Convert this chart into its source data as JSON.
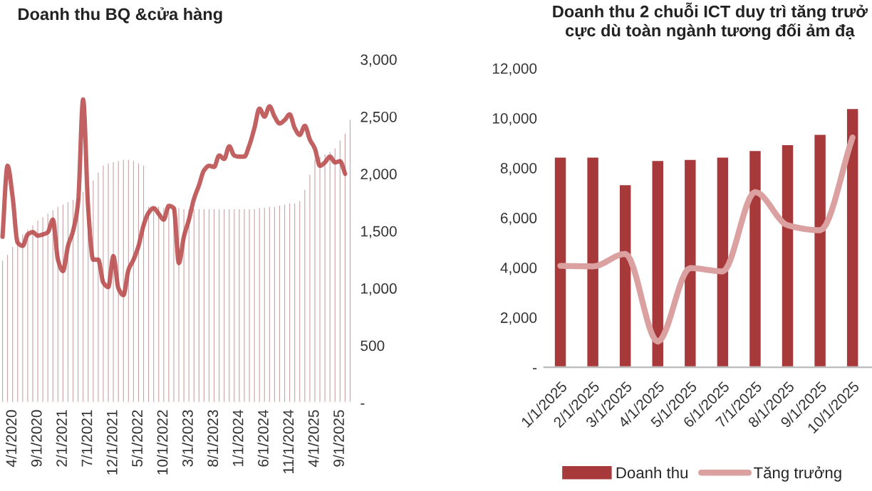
{
  "chart_data": [
    {
      "type": "bar",
      "title": "Doanh thu BQ &cửa hàng",
      "categories": [
        null,
        null,
        "4/1/2020",
        null,
        null,
        null,
        null,
        "9/1/2020",
        null,
        null,
        null,
        null,
        "2/1/2021",
        null,
        null,
        null,
        null,
        "7/1/2021",
        null,
        null,
        null,
        null,
        "12/1/2021",
        null,
        null,
        null,
        null,
        "5/1/2022",
        null,
        null,
        null,
        null,
        "10/1/2022",
        null,
        null,
        null,
        null,
        "3/1/2023",
        null,
        null,
        null,
        null,
        "8/1/2023",
        null,
        null,
        null,
        null,
        "1/1/2024",
        null,
        null,
        null,
        null,
        "6/1/2024",
        null,
        null,
        null,
        null,
        "11/1/2024",
        null,
        null,
        null,
        null,
        "4/1/2025",
        null,
        null,
        null,
        null,
        "9/1/2025",
        null,
        null
      ],
      "series": [
        {
          "axis": "y2",
          "color": "#c9a2a4",
          "values": [
            1250,
            1300,
            1370,
            1420,
            1480,
            1520,
            1560,
            1600,
            1630,
            1660,
            1690,
            1720,
            1740,
            1760,
            1780,
            1800,
            1850,
            1900,
            1950,
            2020,
            2080,
            2100,
            2110,
            2120,
            2130,
            2130,
            2120,
            2100,
            2080,
            1720,
            1720,
            1720,
            1710,
            1710,
            1710,
            1710,
            1700,
            1700,
            1700,
            1700,
            1700,
            1700,
            1700,
            1700,
            1700,
            1700,
            1700,
            1700,
            1700,
            1700,
            1700,
            1710,
            1710,
            1720,
            1720,
            1730,
            1740,
            1750,
            1750,
            1770,
            1870,
            2000,
            2130,
            2160,
            2180,
            2200,
            2230,
            2300,
            2360,
            2480
          ]
        },
        {
          "type": "line",
          "axis": "y2",
          "color": "#b3393b",
          "values": [
            1450,
            2070,
            1800,
            1400,
            1370,
            1470,
            1490,
            1460,
            1470,
            1490,
            1600,
            1250,
            1150,
            1370,
            1500,
            1750,
            2650,
            1700,
            1250,
            1250,
            1050,
            1010,
            1280,
            1000,
            940,
            1160,
            1250,
            1370,
            1550,
            1660,
            1700,
            1650,
            1600,
            1720,
            1700,
            1220,
            1450,
            1600,
            1780,
            1900,
            2030,
            2070,
            2060,
            2160,
            2130,
            2240,
            2160,
            2150,
            2150,
            2250,
            2400,
            2570,
            2500,
            2590,
            2500,
            2440,
            2470,
            2520,
            2400,
            2340,
            2420,
            2300,
            2220,
            2070,
            2100,
            2150,
            2100,
            2110,
            2000,
            null
          ]
        }
      ],
      "y2lim": [
        0,
        3000
      ],
      "y2ticks": [
        {
          "value": 0,
          "label": "-"
        },
        {
          "value": 500,
          "label": "500"
        },
        {
          "value": 1000,
          "label": "1,000"
        },
        {
          "value": 1500,
          "label": "1,500"
        },
        {
          "value": 2000,
          "label": "2,000"
        },
        {
          "value": 2500,
          "label": "2,500"
        },
        {
          "value": 3000,
          "label": "3,000"
        }
      ],
      "grid": false
    },
    {
      "type": "bar",
      "title": "Doanh thu 2 chuỗi ICT duy trì tăng trưở\ncực dù toàn ngành tương đối ảm đạ",
      "categories": [
        "1/1/2025",
        "2/1/2025",
        "3/1/2025",
        "4/1/2025",
        "5/1/2025",
        "6/1/2025",
        "7/1/2025",
        "8/1/2025",
        "9/1/2025",
        "10/1/2025"
      ],
      "series": [
        {
          "name": "Doanh thu",
          "color": "#a8393b",
          "values": [
            8450,
            8450,
            7350,
            8320,
            8360,
            8450,
            8720,
            8950,
            9370,
            10400
          ]
        },
        {
          "type": "line",
          "name": "Tăng trưởng",
          "color": "#dba0a0",
          "values": [
            4070,
            4050,
            4550,
            1030,
            3980,
            3850,
            7030,
            5700,
            5500,
            9220
          ]
        }
      ],
      "ylim": [
        0,
        12000
      ],
      "yticks": [
        {
          "value": 0,
          "label": "-"
        },
        {
          "value": 2000,
          "label": "2,000"
        },
        {
          "value": 4000,
          "label": "4,000"
        },
        {
          "value": 6000,
          "label": "6,000"
        },
        {
          "value": 8000,
          "label": "8,000"
        },
        {
          "value": 10000,
          "label": "10,000"
        },
        {
          "value": 12000,
          "label": "12,000"
        }
      ],
      "grid": false,
      "legend": "bottom"
    }
  ]
}
